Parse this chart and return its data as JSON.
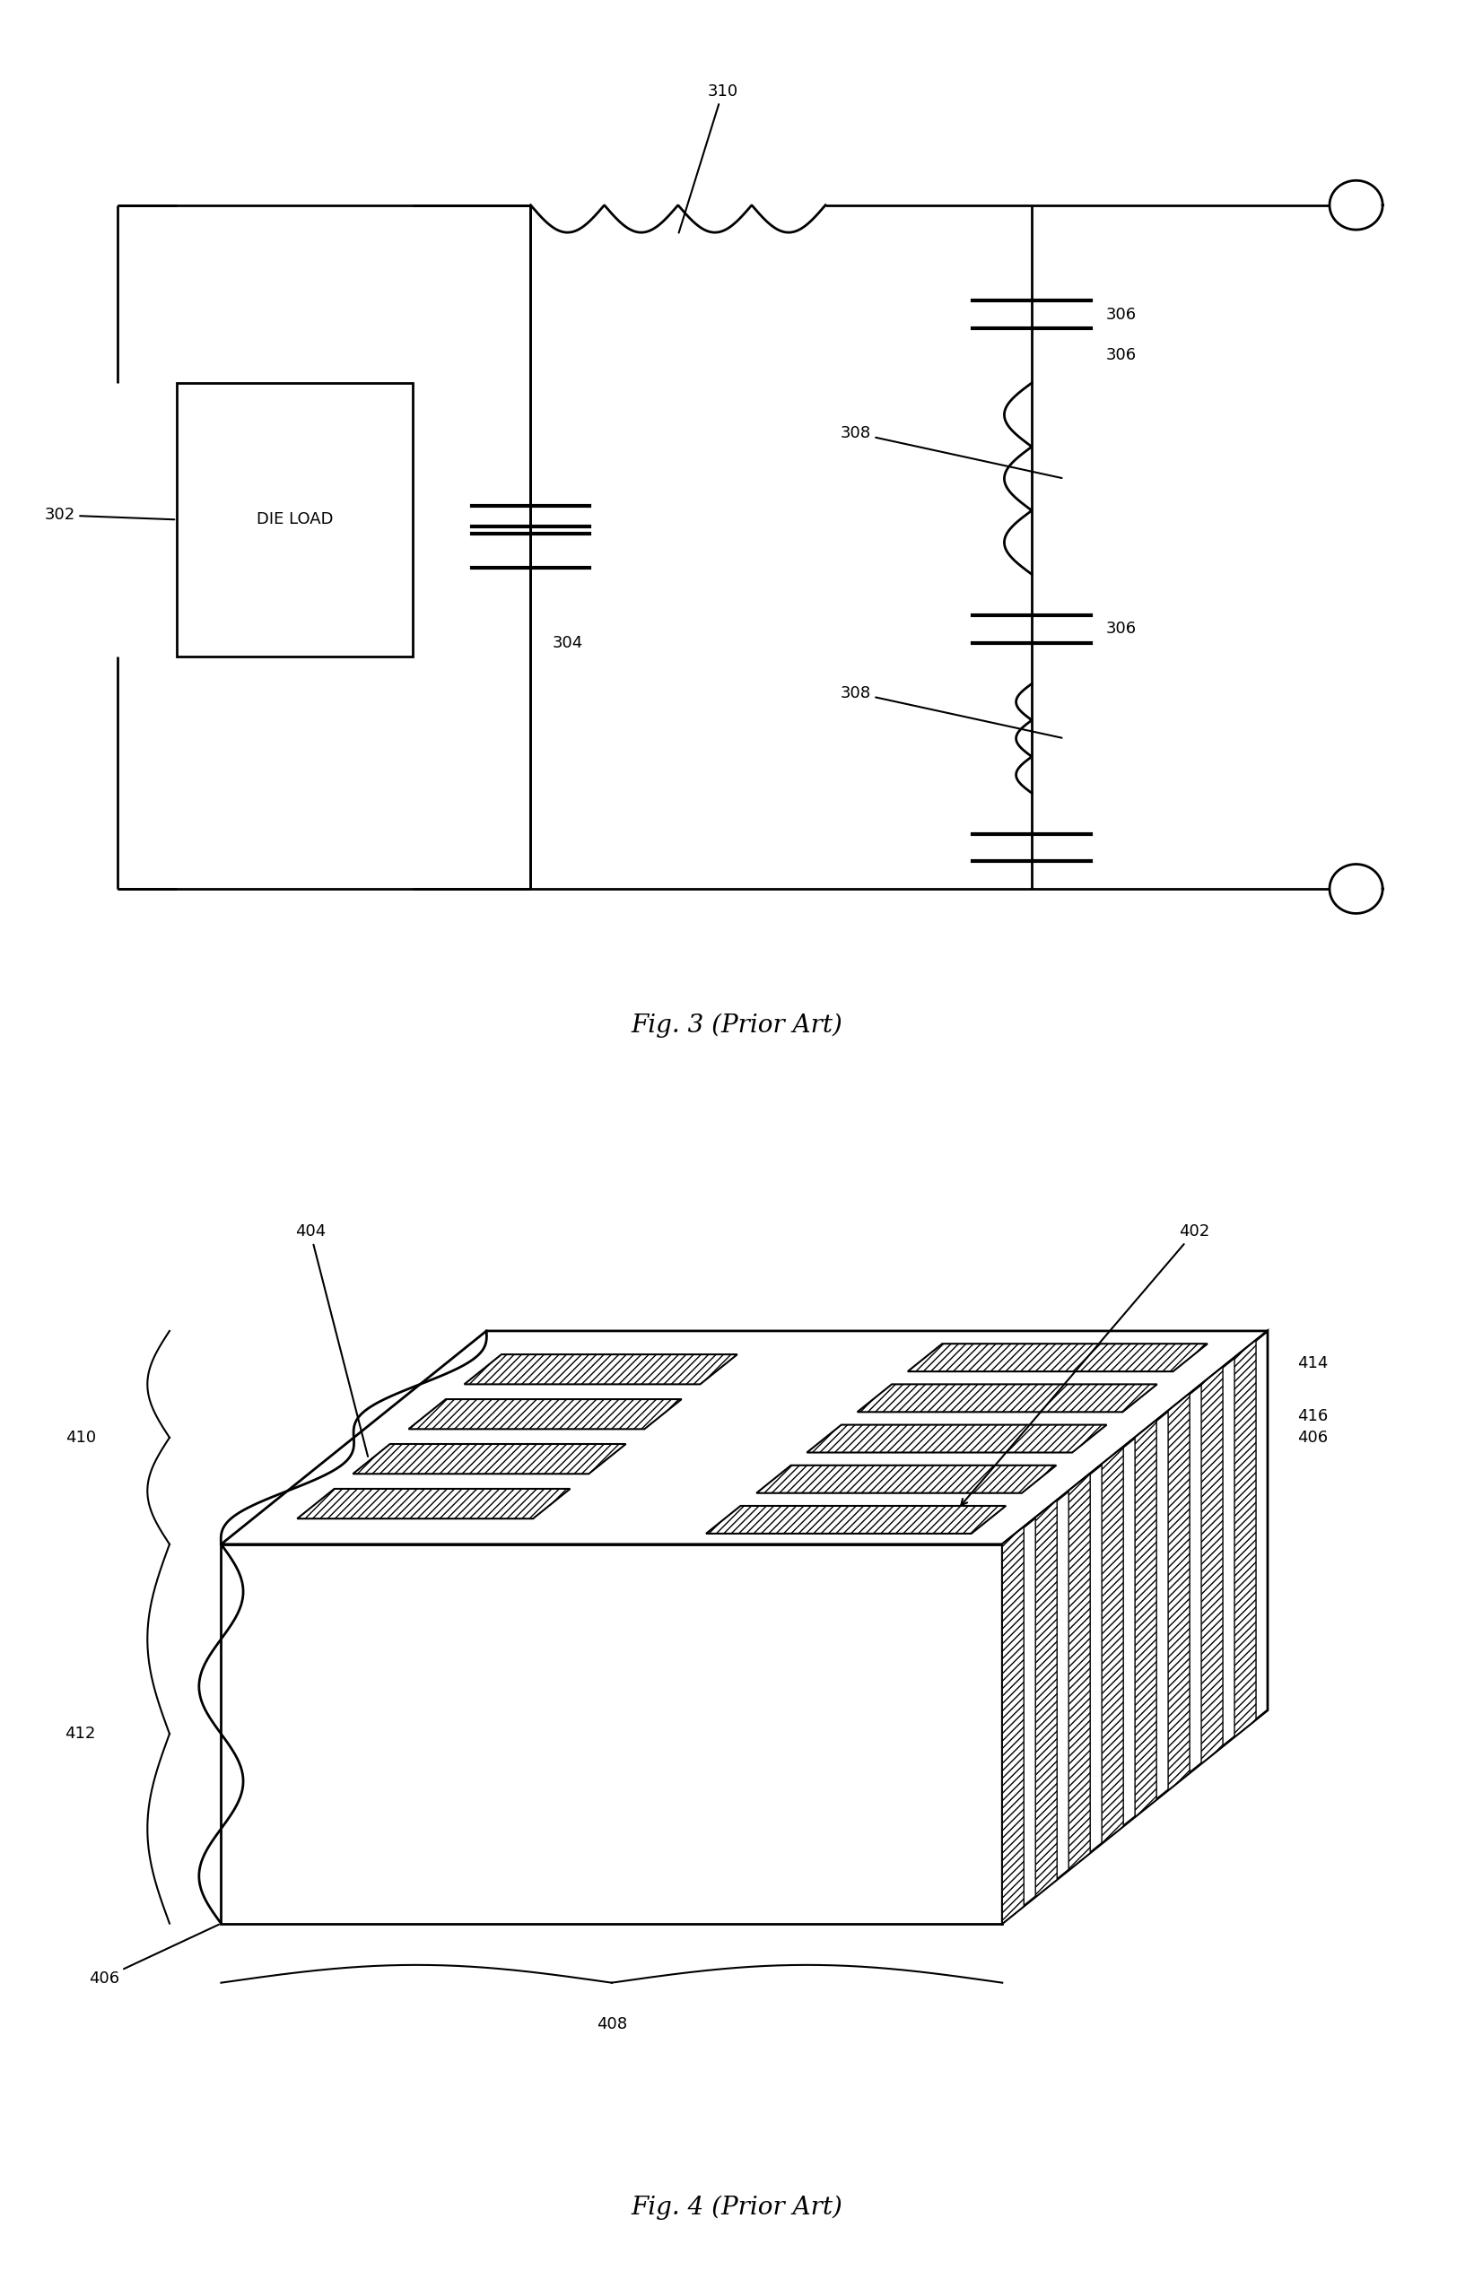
{
  "line_color": "#000000",
  "bg_color": "#ffffff",
  "label_fontsize": 13,
  "title_fontsize": 20,
  "fig3_title": "Fig. 3 (Prior Art)",
  "fig4_title": "Fig. 4 (Prior Art)"
}
